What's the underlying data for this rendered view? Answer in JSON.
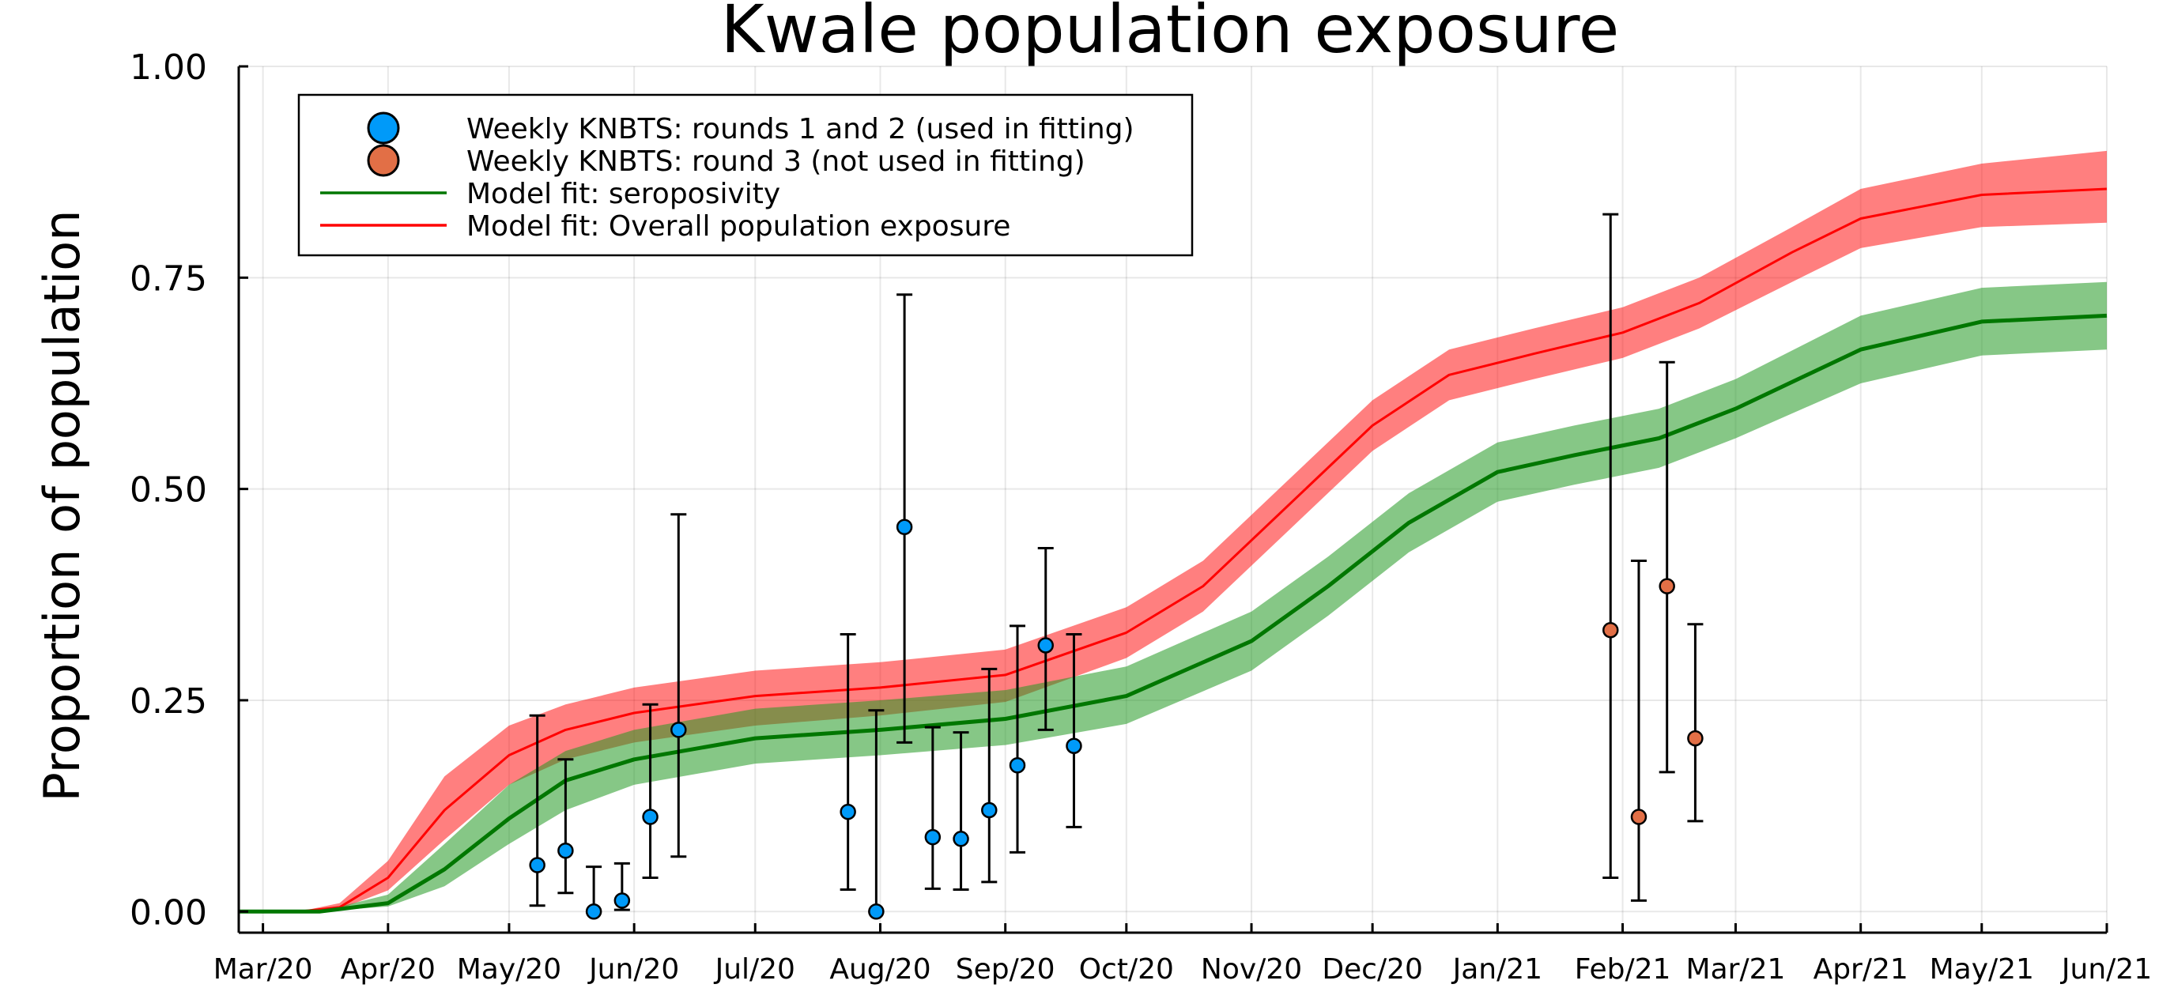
{
  "chart_data": {
    "type": "line",
    "title": "Kwale population exposure",
    "xlabel": "",
    "ylabel": "Proportion of population",
    "x_range": [
      "2020-02-24",
      "2021-06-01"
    ],
    "ylim": [
      -0.025,
      1.0
    ],
    "x_ticks": [
      {
        "date": "2020-03-01",
        "label": "Mar/20"
      },
      {
        "date": "2020-04-01",
        "label": "Apr/20"
      },
      {
        "date": "2020-05-01",
        "label": "May/20"
      },
      {
        "date": "2020-06-01",
        "label": "Jun/20"
      },
      {
        "date": "2020-07-01",
        "label": "Jul/20"
      },
      {
        "date": "2020-08-01",
        "label": "Aug/20"
      },
      {
        "date": "2020-09-01",
        "label": "Sep/20"
      },
      {
        "date": "2020-10-01",
        "label": "Oct/20"
      },
      {
        "date": "2020-11-01",
        "label": "Nov/20"
      },
      {
        "date": "2020-12-01",
        "label": "Dec/20"
      },
      {
        "date": "2021-01-01",
        "label": "Jan/21"
      },
      {
        "date": "2021-02-01",
        "label": "Feb/21"
      },
      {
        "date": "2021-03-01",
        "label": "Mar/21"
      },
      {
        "date": "2021-04-01",
        "label": "Apr/21"
      },
      {
        "date": "2021-05-01",
        "label": "May/21"
      },
      {
        "date": "2021-06-01",
        "label": "Jun/21"
      }
    ],
    "y_ticks": [
      {
        "value": 0.0,
        "label": "0.00"
      },
      {
        "value": 0.25,
        "label": "0.25"
      },
      {
        "value": 0.5,
        "label": "0.50"
      },
      {
        "value": 0.75,
        "label": "0.75"
      },
      {
        "value": 1.0,
        "label": "1.00"
      }
    ],
    "grid": true,
    "legend_position": "top-left",
    "series": [
      {
        "name": "Model fit: Overall population exposure",
        "kind": "line_with_band",
        "color": "#ff0000",
        "band_color": "#ff0000",
        "points": [
          {
            "x": "2020-02-24",
            "y": 0.0,
            "lo": 0.0,
            "hi": 0.0
          },
          {
            "x": "2020-03-10",
            "y": 0.0,
            "lo": 0.0,
            "hi": 0.0
          },
          {
            "x": "2020-03-20",
            "y": 0.005,
            "lo": 0.003,
            "hi": 0.01
          },
          {
            "x": "2020-04-01",
            "y": 0.04,
            "lo": 0.025,
            "hi": 0.06
          },
          {
            "x": "2020-04-15",
            "y": 0.12,
            "lo": 0.085,
            "hi": 0.16
          },
          {
            "x": "2020-05-01",
            "y": 0.185,
            "lo": 0.15,
            "hi": 0.22
          },
          {
            "x": "2020-05-15",
            "y": 0.215,
            "lo": 0.18,
            "hi": 0.245
          },
          {
            "x": "2020-06-01",
            "y": 0.235,
            "lo": 0.2,
            "hi": 0.265
          },
          {
            "x": "2020-07-01",
            "y": 0.255,
            "lo": 0.22,
            "hi": 0.285
          },
          {
            "x": "2020-08-01",
            "y": 0.265,
            "lo": 0.232,
            "hi": 0.295
          },
          {
            "x": "2020-09-01",
            "y": 0.28,
            "lo": 0.248,
            "hi": 0.31
          },
          {
            "x": "2020-10-01",
            "y": 0.33,
            "lo": 0.3,
            "hi": 0.36
          },
          {
            "x": "2020-10-20",
            "y": 0.385,
            "lo": 0.355,
            "hi": 0.415
          },
          {
            "x": "2020-11-10",
            "y": 0.48,
            "lo": 0.45,
            "hi": 0.51
          },
          {
            "x": "2020-12-01",
            "y": 0.575,
            "lo": 0.545,
            "hi": 0.605
          },
          {
            "x": "2020-12-20",
            "y": 0.635,
            "lo": 0.605,
            "hi": 0.665
          },
          {
            "x": "2021-01-10",
            "y": 0.66,
            "lo": 0.63,
            "hi": 0.69
          },
          {
            "x": "2021-02-01",
            "y": 0.685,
            "lo": 0.655,
            "hi": 0.715
          },
          {
            "x": "2021-02-20",
            "y": 0.72,
            "lo": 0.69,
            "hi": 0.75
          },
          {
            "x": "2021-03-15",
            "y": 0.78,
            "lo": 0.745,
            "hi": 0.81
          },
          {
            "x": "2021-04-01",
            "y": 0.82,
            "lo": 0.785,
            "hi": 0.855
          },
          {
            "x": "2021-05-01",
            "y": 0.848,
            "lo": 0.81,
            "hi": 0.885
          },
          {
            "x": "2021-06-01",
            "y": 0.855,
            "lo": 0.815,
            "hi": 0.9
          }
        ]
      },
      {
        "name": "Model fit: seroposivity",
        "kind": "line_with_band",
        "color": "#007700",
        "band_color": "#229922",
        "points": [
          {
            "x": "2020-02-24",
            "y": 0.0,
            "lo": 0.0,
            "hi": 0.0
          },
          {
            "x": "2020-03-15",
            "y": 0.0,
            "lo": 0.0,
            "hi": 0.0
          },
          {
            "x": "2020-04-01",
            "y": 0.01,
            "lo": 0.006,
            "hi": 0.02
          },
          {
            "x": "2020-04-15",
            "y": 0.05,
            "lo": 0.03,
            "hi": 0.08
          },
          {
            "x": "2020-05-01",
            "y": 0.11,
            "lo": 0.08,
            "hi": 0.15
          },
          {
            "x": "2020-05-15",
            "y": 0.155,
            "lo": 0.12,
            "hi": 0.19
          },
          {
            "x": "2020-06-01",
            "y": 0.18,
            "lo": 0.15,
            "hi": 0.215
          },
          {
            "x": "2020-07-01",
            "y": 0.205,
            "lo": 0.175,
            "hi": 0.24
          },
          {
            "x": "2020-08-01",
            "y": 0.215,
            "lo": 0.185,
            "hi": 0.25
          },
          {
            "x": "2020-09-01",
            "y": 0.228,
            "lo": 0.197,
            "hi": 0.262
          },
          {
            "x": "2020-10-01",
            "y": 0.255,
            "lo": 0.222,
            "hi": 0.29
          },
          {
            "x": "2020-11-01",
            "y": 0.32,
            "lo": 0.285,
            "hi": 0.355
          },
          {
            "x": "2020-11-20",
            "y": 0.385,
            "lo": 0.35,
            "hi": 0.42
          },
          {
            "x": "2020-12-10",
            "y": 0.46,
            "lo": 0.425,
            "hi": 0.495
          },
          {
            "x": "2021-01-01",
            "y": 0.52,
            "lo": 0.485,
            "hi": 0.555
          },
          {
            "x": "2021-01-20",
            "y": 0.54,
            "lo": 0.505,
            "hi": 0.575
          },
          {
            "x": "2021-02-10",
            "y": 0.56,
            "lo": 0.525,
            "hi": 0.595
          },
          {
            "x": "2021-03-01",
            "y": 0.595,
            "lo": 0.56,
            "hi": 0.63
          },
          {
            "x": "2021-04-01",
            "y": 0.665,
            "lo": 0.625,
            "hi": 0.705
          },
          {
            "x": "2021-05-01",
            "y": 0.698,
            "lo": 0.658,
            "hi": 0.738
          },
          {
            "x": "2021-06-01",
            "y": 0.705,
            "lo": 0.665,
            "hi": 0.745
          }
        ]
      },
      {
        "name": "Weekly KNBTS: rounds 1 and 2 (used in fitting)",
        "kind": "scatter_with_errorbars",
        "color": "#009af9",
        "points": [
          {
            "x": "2020-05-08",
            "y": 0.055,
            "lo": 0.007,
            "hi": 0.232
          },
          {
            "x": "2020-05-15",
            "y": 0.072,
            "lo": 0.022,
            "hi": 0.18
          },
          {
            "x": "2020-05-22",
            "y": 0.0,
            "lo": 0.0,
            "hi": 0.053
          },
          {
            "x": "2020-05-29",
            "y": 0.013,
            "lo": 0.002,
            "hi": 0.057
          },
          {
            "x": "2020-06-05",
            "y": 0.112,
            "lo": 0.04,
            "hi": 0.245
          },
          {
            "x": "2020-06-12",
            "y": 0.215,
            "lo": 0.065,
            "hi": 0.47
          },
          {
            "x": "2020-07-24",
            "y": 0.118,
            "lo": 0.026,
            "hi": 0.328
          },
          {
            "x": "2020-07-31",
            "y": 0.0,
            "lo": 0.0,
            "hi": 0.238
          },
          {
            "x": "2020-08-07",
            "y": 0.455,
            "lo": 0.2,
            "hi": 0.73
          },
          {
            "x": "2020-08-14",
            "y": 0.088,
            "lo": 0.027,
            "hi": 0.218
          },
          {
            "x": "2020-08-21",
            "y": 0.086,
            "lo": 0.026,
            "hi": 0.212
          },
          {
            "x": "2020-08-28",
            "y": 0.12,
            "lo": 0.035,
            "hi": 0.287
          },
          {
            "x": "2020-09-04",
            "y": 0.173,
            "lo": 0.07,
            "hi": 0.338
          },
          {
            "x": "2020-09-11",
            "y": 0.315,
            "lo": 0.215,
            "hi": 0.43
          },
          {
            "x": "2020-09-18",
            "y": 0.196,
            "lo": 0.1,
            "hi": 0.328
          }
        ]
      },
      {
        "name": "Weekly KNBTS: round 3 (not used in fitting)",
        "kind": "scatter_with_errorbars",
        "color": "#e26f46",
        "points": [
          {
            "x": "2021-01-29",
            "y": 0.333,
            "lo": 0.04,
            "hi": 0.825
          },
          {
            "x": "2021-02-05",
            "y": 0.112,
            "lo": 0.013,
            "hi": 0.415
          },
          {
            "x": "2021-02-12",
            "y": 0.385,
            "lo": 0.165,
            "hi": 0.65
          },
          {
            "x": "2021-02-19",
            "y": 0.205,
            "lo": 0.107,
            "hi": 0.34
          }
        ]
      }
    ]
  }
}
